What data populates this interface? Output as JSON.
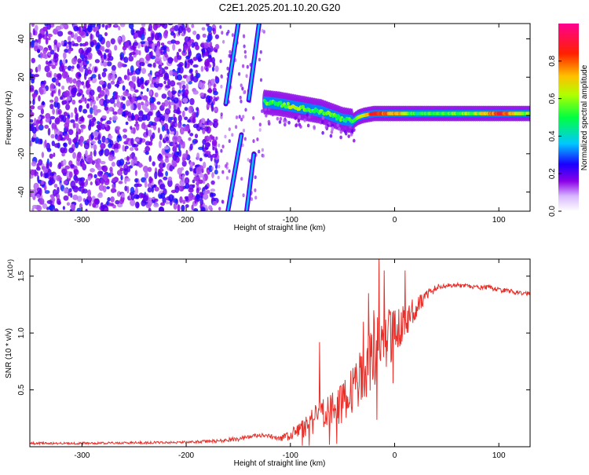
{
  "title": "C2E1.2025.201.10.20.G20",
  "chart_data": [
    {
      "type": "heatmap",
      "xlabel": "Height of straight line (km)",
      "ylabel": "Frequency (Hz)",
      "xlim": [
        -350,
        130
      ],
      "ylim": [
        -50,
        48
      ],
      "x_ticks": [
        -300,
        -200,
        -100,
        0,
        100
      ],
      "y_ticks": [
        -40,
        -20,
        0,
        20,
        40
      ],
      "colorbar": {
        "label": "Normalized spectral amplitude",
        "range": [
          0,
          1
        ],
        "ticks": [
          0.0,
          0.2,
          0.4,
          0.6,
          0.8
        ],
        "tick_labels": [
          "0.0",
          "0.2",
          "0.4",
          "0.6",
          "0.8"
        ],
        "colors": [
          "#ffffff",
          "#9400d3",
          "#0000ff",
          "#00ffff",
          "#00ff00",
          "#ffff00",
          "#ff8000",
          "#ff0000",
          "#ff00a0"
        ]
      },
      "features": {
        "noise_region_x": [
          -350,
          -170
        ],
        "diagonal_streaks": [
          {
            "x": [
              -162,
              -150
            ],
            "y": [
              6,
              48
            ]
          },
          {
            "x": [
              -160,
              -147
            ],
            "y": [
              -50,
              -10
            ]
          },
          {
            "x": [
              -140,
              -130
            ],
            "y": [
              8,
              48
            ]
          },
          {
            "x": [
              -142,
              -135
            ],
            "y": [
              -50,
              -20
            ]
          }
        ],
        "ridge": {
          "x": [
            -125,
            -110,
            -100,
            -90,
            -80,
            -70,
            -60,
            -50,
            -40,
            -35,
            -30,
            -20,
            -10,
            0,
            20,
            40,
            60,
            80,
            100,
            120,
            130
          ],
          "y": [
            7,
            6,
            5,
            4,
            3,
            2,
            0,
            -2,
            -3,
            -1,
            0,
            1,
            1,
            1,
            1,
            1,
            1,
            1,
            1,
            1,
            1
          ],
          "amplitude": [
            0.5,
            0.55,
            0.6,
            0.6,
            0.55,
            0.55,
            0.55,
            0.5,
            0.5,
            0.65,
            0.7,
            0.85,
            0.8,
            0.75,
            0.5,
            0.5,
            0.55,
            0.6,
            0.85,
            0.65,
            0.55
          ]
        }
      }
    },
    {
      "type": "line",
      "xlabel": "Height of straight line (km)",
      "ylabel": "SNR (10 * v/v)",
      "y_multiplier": "(x10⁴)",
      "xlim": [
        -350,
        130
      ],
      "ylim": [
        0,
        1.65
      ],
      "x_ticks": [
        -300,
        -200,
        -100,
        0,
        100
      ],
      "y_ticks": [
        0.5,
        1.0,
        1.5
      ],
      "y_tick_labels": [
        "0.5",
        "1.0",
        "1.5"
      ],
      "color": "#e8302a",
      "series": [
        {
          "x": [
            -350,
            -300,
            -250,
            -200,
            -170,
            -150,
            -130,
            -120,
            -110,
            -100,
            -90,
            -80,
            -70,
            -60,
            -50,
            -40,
            -30,
            -20,
            -10,
            0,
            10,
            20,
            30,
            40,
            50,
            60,
            70,
            80,
            90,
            100,
            110,
            120,
            130
          ],
          "values": [
            0.03,
            0.03,
            0.035,
            0.04,
            0.05,
            0.07,
            0.1,
            0.09,
            0.07,
            0.1,
            0.15,
            0.22,
            0.28,
            0.33,
            0.38,
            0.5,
            0.65,
            0.8,
            0.92,
            1.0,
            1.1,
            1.22,
            1.33,
            1.4,
            1.42,
            1.42,
            1.41,
            1.4,
            1.4,
            1.38,
            1.37,
            1.35,
            1.35
          ],
          "noise": [
            0.01,
            0.01,
            0.01,
            0.01,
            0.015,
            0.02,
            0.02,
            0.02,
            0.02,
            0.05,
            0.08,
            0.12,
            0.15,
            0.15,
            0.18,
            0.2,
            0.25,
            0.3,
            0.3,
            0.2,
            0.15,
            0.1,
            0.06,
            0.03,
            0.02,
            0.02,
            0.02,
            0.02,
            0.02,
            0.02,
            0.02,
            0.02,
            0.02
          ]
        }
      ]
    }
  ]
}
